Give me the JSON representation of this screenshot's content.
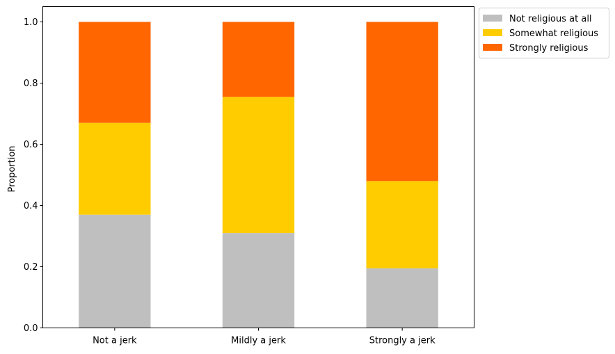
{
  "chart_data": {
    "type": "bar",
    "stacked": true,
    "categories": [
      "Not a jerk",
      "Mildly a jerk",
      "Strongly a jerk"
    ],
    "series": [
      {
        "name": "Not religious at all",
        "color": "#bfbfbf",
        "values": [
          0.37,
          0.31,
          0.195
        ]
      },
      {
        "name": "Somewhat religious",
        "color": "#ffcc00",
        "values": [
          0.3,
          0.445,
          0.285
        ]
      },
      {
        "name": "Strongly religious",
        "color": "#ff6600",
        "values": [
          0.33,
          0.245,
          0.52
        ]
      }
    ],
    "ylabel": "Proportion",
    "ylim": [
      0,
      1.05
    ],
    "yticks": [
      0.0,
      0.2,
      0.4,
      0.6,
      0.8,
      1.0
    ],
    "ytick_labels": [
      "0.0",
      "0.2",
      "0.4",
      "0.6",
      "0.8",
      "1.0"
    ],
    "legend_position": "outside-top-right",
    "grid": false
  }
}
